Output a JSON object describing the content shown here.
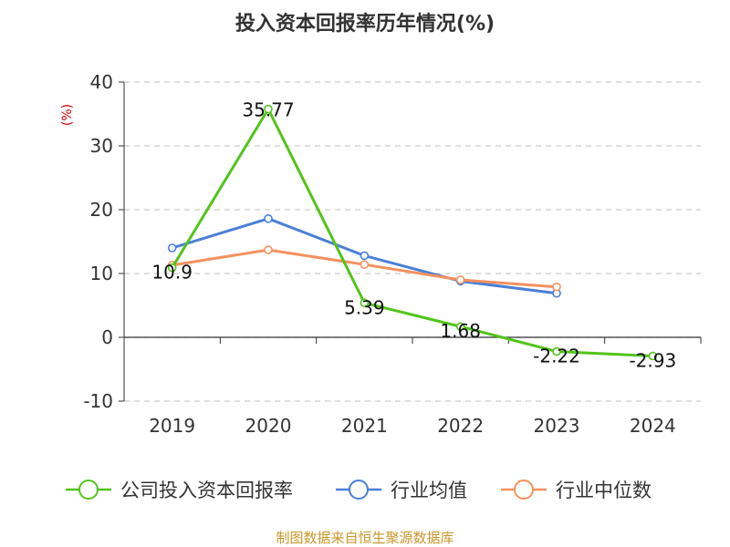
{
  "chart_data": {
    "type": "line",
    "title": "投入资本回报率历年情况(%)",
    "ylabel": "(%)",
    "xlabel": "",
    "categories": [
      "2019",
      "2020",
      "2021",
      "2022",
      "2023",
      "2024"
    ],
    "ylim": [
      -10,
      40
    ],
    "yticks": [
      -10,
      0,
      10,
      20,
      30,
      40
    ],
    "grid": true,
    "legend_position": "bottom",
    "series": [
      {
        "name": "公司投入资本回报率",
        "color": "#52c41a",
        "values": [
          10.9,
          35.77,
          5.39,
          1.68,
          -2.22,
          -2.93
        ],
        "labels": [
          "10.9",
          "35.77",
          "5.39",
          "1.68",
          "-2.22",
          "-2.93"
        ]
      },
      {
        "name": "行业均值",
        "color": "#4a7fd8",
        "values": [
          14.0,
          18.6,
          12.8,
          8.8,
          6.9,
          null
        ]
      },
      {
        "name": "行业中位数",
        "color": "#f4915f",
        "values": [
          11.3,
          13.7,
          11.4,
          9.0,
          7.9,
          null
        ]
      }
    ]
  },
  "footer": {
    "source": "制图数据来自恒生聚源数据库"
  }
}
